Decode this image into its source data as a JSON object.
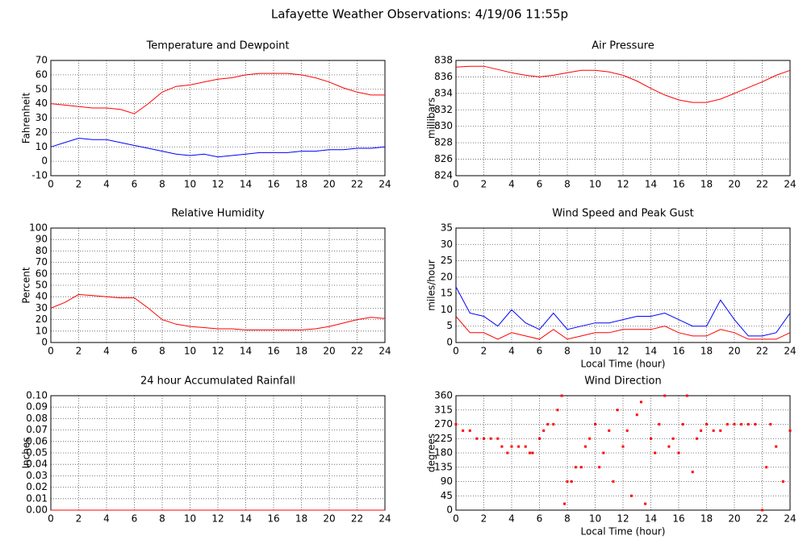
{
  "title": "Lafayette Weather Observations: 4/19/06 11:55p",
  "chart_data": [
    {
      "type": "line",
      "title": "Temperature and Dewpoint",
      "y_label": "Fahrenheit",
      "x": [
        0,
        1,
        2,
        3,
        4,
        5,
        6,
        7,
        8,
        9,
        10,
        11,
        12,
        13,
        14,
        15,
        16,
        17,
        18,
        19,
        20,
        21,
        22,
        23,
        24
      ],
      "series": [
        {
          "color": "#ff0000",
          "values": [
            40,
            39,
            38,
            37,
            37,
            36,
            33,
            40,
            48,
            52,
            53,
            55,
            57,
            58,
            60,
            61,
            61,
            61,
            60,
            58,
            55,
            51,
            48,
            46,
            46
          ]
        },
        {
          "color": "#0000ff",
          "values": [
            10,
            13,
            16,
            15,
            15,
            13,
            11,
            9,
            7,
            5,
            4,
            5,
            3,
            4,
            5,
            6,
            6,
            6,
            7,
            7,
            8,
            8,
            9,
            9,
            10
          ]
        }
      ],
      "xlim": [
        0,
        24
      ],
      "xticks": [
        0,
        2,
        4,
        6,
        8,
        10,
        12,
        14,
        16,
        18,
        20,
        22,
        24
      ],
      "ylim": [
        -10,
        70
      ],
      "yticks": [
        -10,
        0,
        10,
        20,
        30,
        40,
        50,
        60,
        70
      ],
      "grid": true
    },
    {
      "type": "line",
      "title": "Air Pressure",
      "y_label": "millibars",
      "x": [
        0,
        1,
        2,
        3,
        4,
        5,
        6,
        7,
        8,
        9,
        10,
        11,
        12,
        13,
        14,
        15,
        16,
        17,
        18,
        19,
        20,
        21,
        22,
        23,
        24
      ],
      "series": [
        {
          "color": "#ff0000",
          "values": [
            837.2,
            837.3,
            837.3,
            836.9,
            836.5,
            836.2,
            836,
            836.2,
            836.5,
            836.8,
            836.8,
            836.6,
            836.2,
            835.5,
            834.6,
            833.8,
            833.2,
            832.9,
            832.9,
            833.3,
            834,
            834.7,
            835.4,
            836.2,
            836.8
          ]
        }
      ],
      "xlim": [
        0,
        24
      ],
      "xticks": [
        0,
        2,
        4,
        6,
        8,
        10,
        12,
        14,
        16,
        18,
        20,
        22,
        24
      ],
      "ylim": [
        824,
        838
      ],
      "yticks": [
        824,
        826,
        828,
        830,
        832,
        834,
        836,
        838
      ],
      "grid": true
    },
    {
      "type": "line",
      "title": "Relative Humidity",
      "y_label": "Percent",
      "x": [
        0,
        1,
        2,
        3,
        4,
        5,
        6,
        7,
        8,
        9,
        10,
        11,
        12,
        13,
        14,
        15,
        16,
        17,
        18,
        19,
        20,
        21,
        22,
        23,
        24
      ],
      "series": [
        {
          "color": "#ff0000",
          "values": [
            30,
            35,
            42,
            41,
            40,
            39,
            39,
            30,
            20,
            16,
            14,
            13,
            12,
            12,
            11,
            11,
            11,
            11,
            11,
            12,
            14,
            17,
            20,
            22,
            21
          ]
        }
      ],
      "xlim": [
        0,
        24
      ],
      "xticks": [
        0,
        2,
        4,
        6,
        8,
        10,
        12,
        14,
        16,
        18,
        20,
        22,
        24
      ],
      "ylim": [
        0,
        100
      ],
      "yticks": [
        0,
        10,
        20,
        30,
        40,
        50,
        60,
        70,
        80,
        90,
        100
      ],
      "grid": true
    },
    {
      "type": "line",
      "title": "Wind Speed and Peak Gust",
      "y_label": "miles/hour",
      "x_label": "Local Time (hour)",
      "x": [
        0,
        1,
        2,
        3,
        4,
        5,
        6,
        7,
        8,
        9,
        10,
        11,
        12,
        13,
        14,
        15,
        16,
        17,
        18,
        19,
        20,
        21,
        22,
        23,
        24
      ],
      "series": [
        {
          "color": "#0000ff",
          "values": [
            17,
            9,
            8,
            5,
            10,
            6,
            4,
            9,
            4,
            5,
            6,
            6,
            7,
            8,
            8,
            9,
            7,
            5,
            5,
            13,
            7,
            2,
            2,
            3,
            9
          ]
        },
        {
          "color": "#ff0000",
          "values": [
            8,
            3,
            3,
            1,
            3,
            2,
            1,
            4,
            1,
            2,
            3,
            3,
            4,
            4,
            4,
            5,
            3,
            2,
            2,
            4,
            3,
            1,
            1,
            1,
            3
          ]
        }
      ],
      "xlim": [
        0,
        24
      ],
      "xticks": [
        0,
        2,
        4,
        6,
        8,
        10,
        12,
        14,
        16,
        18,
        20,
        22,
        24
      ],
      "ylim": [
        0,
        35
      ],
      "yticks": [
        0,
        5,
        10,
        15,
        20,
        25,
        30,
        35
      ],
      "grid": true
    },
    {
      "type": "line",
      "title": "24 hour Accumulated Rainfall",
      "y_label": "Inches",
      "x": [
        0,
        1,
        2,
        3,
        4,
        5,
        6,
        7,
        8,
        9,
        10,
        11,
        12,
        13,
        14,
        15,
        16,
        17,
        18,
        19,
        20,
        21,
        22,
        23,
        24
      ],
      "series": [
        {
          "color": "#ff0000",
          "values": [
            0,
            0,
            0,
            0,
            0,
            0,
            0,
            0,
            0,
            0,
            0,
            0,
            0,
            0,
            0,
            0,
            0,
            0,
            0,
            0,
            0,
            0,
            0,
            0,
            0
          ]
        }
      ],
      "xlim": [
        0,
        24
      ],
      "xticks": [
        0,
        2,
        4,
        6,
        8,
        10,
        12,
        14,
        16,
        18,
        20,
        22,
        24
      ],
      "ylim": [
        0,
        0.1
      ],
      "yticks": [
        {
          "value": 0,
          "label": "0.00"
        },
        {
          "value": 0.01,
          "label": "0.01"
        },
        {
          "value": 0.02,
          "label": "0.02"
        },
        {
          "value": 0.03,
          "label": "0.03"
        },
        {
          "value": 0.04,
          "label": "0.04"
        },
        {
          "value": 0.05,
          "label": "0.05"
        },
        {
          "value": 0.06,
          "label": "0.06"
        },
        {
          "value": 0.07,
          "label": "0.07"
        },
        {
          "value": 0.08,
          "label": "0.08"
        },
        {
          "value": 0.09,
          "label": "0.09"
        },
        {
          "value": 0.1,
          "label": "0.10"
        }
      ],
      "grid": true
    },
    {
      "type": "scatter",
      "title": "Wind Direction",
      "y_label": "degrees",
      "x_label": "Local Time (hour)",
      "x": [
        0,
        0.5,
        1,
        1.5,
        2,
        2.5,
        3,
        3.3,
        3.7,
        4,
        4.5,
        5,
        5.3,
        5.5,
        6,
        6.3,
        6.6,
        7,
        7.3,
        7.6,
        7.8,
        8,
        8.3,
        8.6,
        9,
        9.3,
        9.6,
        10,
        10.3,
        10.6,
        11,
        11.3,
        11.6,
        12,
        12.3,
        12.6,
        13,
        13.3,
        13.6,
        14,
        14.3,
        14.6,
        15,
        15.3,
        15.6,
        16,
        16.3,
        16.6,
        17,
        17.3,
        17.6,
        18,
        18.5,
        19,
        19.5,
        20,
        20.5,
        21,
        21.5,
        22,
        22.3,
        22.6,
        23,
        23.5,
        24
      ],
      "series": [
        {
          "color": "#ff0000",
          "values": [
            270,
            250,
            250,
            225,
            225,
            225,
            225,
            200,
            180,
            200,
            200,
            200,
            180,
            180,
            225,
            250,
            270,
            270,
            315,
            360,
            20,
            90,
            90,
            135,
            135,
            200,
            225,
            270,
            135,
            180,
            250,
            90,
            315,
            200,
            250,
            45,
            300,
            340,
            20,
            225,
            180,
            270,
            360,
            200,
            225,
            180,
            270,
            360,
            120,
            225,
            250,
            270,
            250,
            250,
            270,
            270,
            270,
            270,
            270,
            0,
            135,
            270,
            200,
            90,
            250
          ]
        }
      ],
      "xlim": [
        0,
        24
      ],
      "xticks": [
        0,
        2,
        4,
        6,
        8,
        10,
        12,
        14,
        16,
        18,
        20,
        22,
        24
      ],
      "ylim": [
        0,
        360
      ],
      "yticks": [
        0,
        45,
        90,
        135,
        180,
        225,
        270,
        315,
        360
      ],
      "grid": true
    }
  ]
}
